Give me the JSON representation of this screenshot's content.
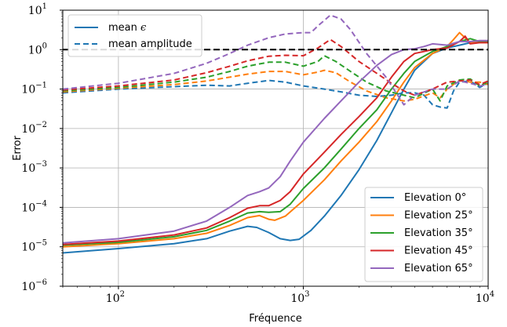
{
  "chart_data": {
    "type": "line",
    "title": "",
    "xlabel": "Fréquence",
    "ylabel": "Error",
    "x_scale": "log",
    "y_scale": "log",
    "xlim": [
      50,
      10000
    ],
    "ylim": [
      1e-06,
      10
    ],
    "grid": true,
    "x_ticks": [
      {
        "value": 100,
        "base": "10",
        "exp": "2"
      },
      {
        "value": 1000,
        "base": "10",
        "exp": "3"
      },
      {
        "value": 10000,
        "base": "10",
        "exp": "4"
      }
    ],
    "y_ticks": [
      {
        "value": 1e-06,
        "base": "10",
        "exp": "−6"
      },
      {
        "value": 1e-05,
        "base": "10",
        "exp": "−5"
      },
      {
        "value": 0.0001,
        "base": "10",
        "exp": "−4"
      },
      {
        "value": 0.001,
        "base": "10",
        "exp": "−3"
      },
      {
        "value": 0.01,
        "base": "10",
        "exp": "−2"
      },
      {
        "value": 0.1,
        "base": "10",
        "exp": "−1"
      },
      {
        "value": 1,
        "base": "10",
        "exp": "0"
      },
      {
        "value": 10,
        "base": "10",
        "exp": "1"
      }
    ],
    "reference_line": {
      "y": 1.0,
      "color": "#000000",
      "style": "dashed"
    },
    "style_legend": {
      "placement": "top-left",
      "entries": [
        {
          "label": "mean ",
          "symbol": "ϵ",
          "style": "solid",
          "color": "#1f77b4"
        },
        {
          "label": "mean amplitude",
          "symbol": "",
          "style": "dashed",
          "color": "#1f77b4"
        }
      ]
    },
    "series_legend": {
      "placement": "bottom-right",
      "degree_symbol": "°"
    },
    "series": [
      {
        "name": "Elevation 0",
        "color": "#1f77b4",
        "mean_error": [
          [
            50,
            7e-06
          ],
          [
            100,
            9e-06
          ],
          [
            200,
            1.2e-05
          ],
          [
            300,
            1.6e-05
          ],
          [
            400,
            2.5e-05
          ],
          [
            500,
            3.3e-05
          ],
          [
            560,
            3.1e-05
          ],
          [
            650,
            2.3e-05
          ],
          [
            750,
            1.6e-05
          ],
          [
            850,
            1.45e-05
          ],
          [
            950,
            1.55e-05
          ],
          [
            1100,
            2.6e-05
          ],
          [
            1300,
            6e-05
          ],
          [
            1600,
            0.0002
          ],
          [
            2000,
            0.0009
          ],
          [
            2500,
            0.005
          ],
          [
            3000,
            0.025
          ],
          [
            3500,
            0.1
          ],
          [
            4000,
            0.3
          ],
          [
            5000,
            0.8
          ],
          [
            6000,
            1.1
          ],
          [
            7000,
            1.3
          ],
          [
            8000,
            1.5
          ],
          [
            10000,
            1.6
          ]
        ],
        "mean_amplitude": [
          [
            50,
            0.08
          ],
          [
            100,
            0.1
          ],
          [
            200,
            0.115
          ],
          [
            300,
            0.125
          ],
          [
            400,
            0.12
          ],
          [
            500,
            0.14
          ],
          [
            650,
            0.165
          ],
          [
            800,
            0.15
          ],
          [
            1000,
            0.12
          ],
          [
            1300,
            0.1
          ],
          [
            1600,
            0.085
          ],
          [
            2000,
            0.07
          ],
          [
            2500,
            0.065
          ],
          [
            3000,
            0.07
          ],
          [
            3500,
            0.08
          ],
          [
            4000,
            0.08
          ],
          [
            4500,
            0.07
          ],
          [
            5000,
            0.04
          ],
          [
            5500,
            0.035
          ],
          [
            6000,
            0.033
          ],
          [
            6500,
            0.09
          ],
          [
            7000,
            0.15
          ],
          [
            8000,
            0.16
          ],
          [
            9000,
            0.11
          ],
          [
            10000,
            0.14
          ]
        ]
      },
      {
        "name": "Elevation 25",
        "color": "#ff7f0e",
        "mean_error": [
          [
            50,
            1e-05
          ],
          [
            100,
            1.2e-05
          ],
          [
            200,
            1.6e-05
          ],
          [
            300,
            2.2e-05
          ],
          [
            400,
            3.5e-05
          ],
          [
            500,
            5.5e-05
          ],
          [
            580,
            6.2e-05
          ],
          [
            650,
            5e-05
          ],
          [
            700,
            4.7e-05
          ],
          [
            800,
            6e-05
          ],
          [
            1000,
            0.00015
          ],
          [
            1300,
            0.0005
          ],
          [
            1600,
            0.0015
          ],
          [
            2000,
            0.0045
          ],
          [
            2500,
            0.015
          ],
          [
            3000,
            0.05
          ],
          [
            3500,
            0.15
          ],
          [
            4000,
            0.35
          ],
          [
            5000,
            0.8
          ],
          [
            6000,
            1.2
          ],
          [
            6500,
            1.8
          ],
          [
            7000,
            2.7
          ],
          [
            8000,
            1.5
          ],
          [
            10000,
            1.5
          ]
        ],
        "mean_amplitude": [
          [
            50,
            0.085
          ],
          [
            100,
            0.105
          ],
          [
            200,
            0.13
          ],
          [
            300,
            0.16
          ],
          [
            400,
            0.2
          ],
          [
            500,
            0.24
          ],
          [
            650,
            0.28
          ],
          [
            800,
            0.28
          ],
          [
            1000,
            0.23
          ],
          [
            1200,
            0.27
          ],
          [
            1300,
            0.3
          ],
          [
            1500,
            0.26
          ],
          [
            1800,
            0.15
          ],
          [
            2200,
            0.09
          ],
          [
            2800,
            0.06
          ],
          [
            3500,
            0.05
          ],
          [
            4000,
            0.055
          ],
          [
            5000,
            0.08
          ],
          [
            5500,
            0.06
          ],
          [
            6000,
            0.1
          ],
          [
            7000,
            0.17
          ],
          [
            8000,
            0.15
          ],
          [
            9000,
            0.15
          ],
          [
            10000,
            0.13
          ]
        ]
      },
      {
        "name": "Elevation 35",
        "color": "#2ca02c",
        "mean_error": [
          [
            50,
            1.1e-05
          ],
          [
            100,
            1.3e-05
          ],
          [
            200,
            1.8e-05
          ],
          [
            300,
            2.6e-05
          ],
          [
            400,
            4.5e-05
          ],
          [
            500,
            7.2e-05
          ],
          [
            580,
            7.8e-05
          ],
          [
            650,
            7.5e-05
          ],
          [
            750,
            7.8e-05
          ],
          [
            850,
            0.00012
          ],
          [
            1000,
            0.0003
          ],
          [
            1300,
            0.001
          ],
          [
            1600,
            0.003
          ],
          [
            2000,
            0.01
          ],
          [
            2500,
            0.03
          ],
          [
            3000,
            0.1
          ],
          [
            3500,
            0.25
          ],
          [
            4000,
            0.5
          ],
          [
            5000,
            0.9
          ],
          [
            6000,
            1.2
          ],
          [
            7000,
            1.6
          ],
          [
            8000,
            1.9
          ],
          [
            9000,
            1.6
          ],
          [
            10000,
            1.6
          ]
        ],
        "mean_amplitude": [
          [
            50,
            0.09
          ],
          [
            100,
            0.11
          ],
          [
            200,
            0.15
          ],
          [
            300,
            0.2
          ],
          [
            400,
            0.28
          ],
          [
            500,
            0.38
          ],
          [
            650,
            0.48
          ],
          [
            800,
            0.48
          ],
          [
            1000,
            0.38
          ],
          [
            1200,
            0.5
          ],
          [
            1300,
            0.7
          ],
          [
            1500,
            0.5
          ],
          [
            1800,
            0.28
          ],
          [
            2200,
            0.15
          ],
          [
            2800,
            0.09
          ],
          [
            3500,
            0.07
          ],
          [
            4000,
            0.06
          ],
          [
            5000,
            0.1
          ],
          [
            5500,
            0.05
          ],
          [
            6000,
            0.12
          ],
          [
            7000,
            0.17
          ],
          [
            8000,
            0.18
          ],
          [
            9000,
            0.12
          ],
          [
            10000,
            0.15
          ]
        ]
      },
      {
        "name": "Elevation 45",
        "color": "#d62728",
        "mean_error": [
          [
            50,
            1.15e-05
          ],
          [
            100,
            1.4e-05
          ],
          [
            200,
            2e-05
          ],
          [
            300,
            3e-05
          ],
          [
            400,
            5.5e-05
          ],
          [
            500,
            9.5e-05
          ],
          [
            580,
            0.00011
          ],
          [
            650,
            0.00011
          ],
          [
            750,
            0.00015
          ],
          [
            850,
            0.00025
          ],
          [
            1000,
            0.0007
          ],
          [
            1300,
            0.0025
          ],
          [
            1600,
            0.007
          ],
          [
            2000,
            0.02
          ],
          [
            2500,
            0.06
          ],
          [
            3000,
            0.2
          ],
          [
            3500,
            0.5
          ],
          [
            4000,
            0.8
          ],
          [
            5000,
            1.0
          ],
          [
            6000,
            1.1
          ],
          [
            7000,
            1.6
          ],
          [
            7500,
            2.2
          ],
          [
            8000,
            1.4
          ],
          [
            9000,
            1.5
          ],
          [
            10000,
            1.5
          ]
        ],
        "mean_amplitude": [
          [
            50,
            0.095
          ],
          [
            100,
            0.12
          ],
          [
            200,
            0.17
          ],
          [
            300,
            0.26
          ],
          [
            400,
            0.38
          ],
          [
            500,
            0.52
          ],
          [
            650,
            0.68
          ],
          [
            800,
            0.72
          ],
          [
            1000,
            0.7
          ],
          [
            1200,
            1.1
          ],
          [
            1400,
            1.8
          ],
          [
            1600,
            1.2
          ],
          [
            2000,
            0.5
          ],
          [
            2500,
            0.25
          ],
          [
            3000,
            0.14
          ],
          [
            3500,
            0.09
          ],
          [
            4000,
            0.07
          ],
          [
            5000,
            0.1
          ],
          [
            6000,
            0.15
          ],
          [
            7000,
            0.16
          ],
          [
            8000,
            0.17
          ],
          [
            9000,
            0.13
          ],
          [
            10000,
            0.16
          ]
        ]
      },
      {
        "name": "Elevation 65",
        "color": "#9467bd",
        "mean_error": [
          [
            50,
            1.25e-05
          ],
          [
            100,
            1.6e-05
          ],
          [
            200,
            2.5e-05
          ],
          [
            300,
            4.5e-05
          ],
          [
            400,
            0.0001
          ],
          [
            500,
            0.0002
          ],
          [
            580,
            0.00025
          ],
          [
            650,
            0.00031
          ],
          [
            750,
            0.0006
          ],
          [
            850,
            0.0015
          ],
          [
            1000,
            0.0045
          ],
          [
            1300,
            0.018
          ],
          [
            1600,
            0.05
          ],
          [
            2000,
            0.15
          ],
          [
            2500,
            0.4
          ],
          [
            3000,
            0.75
          ],
          [
            3500,
            1.0
          ],
          [
            4000,
            1.05
          ],
          [
            4500,
            1.2
          ],
          [
            5000,
            1.4
          ],
          [
            6000,
            1.3
          ],
          [
            7000,
            1.6
          ],
          [
            8000,
            1.6
          ],
          [
            9000,
            1.7
          ],
          [
            10000,
            1.7
          ]
        ],
        "mean_amplitude": [
          [
            50,
            0.1
          ],
          [
            100,
            0.14
          ],
          [
            200,
            0.25
          ],
          [
            300,
            0.45
          ],
          [
            400,
            0.8
          ],
          [
            500,
            1.3
          ],
          [
            650,
            2.0
          ],
          [
            800,
            2.5
          ],
          [
            1000,
            2.7
          ],
          [
            1100,
            2.7
          ],
          [
            1200,
            4.0
          ],
          [
            1400,
            7.5
          ],
          [
            1600,
            6
          ],
          [
            1800,
            3.2
          ],
          [
            2200,
            0.8
          ],
          [
            2800,
            0.2
          ],
          [
            3500,
            0.04
          ],
          [
            4000,
            0.07
          ],
          [
            5000,
            0.1
          ],
          [
            6000,
            0.1
          ],
          [
            7000,
            0.16
          ],
          [
            8000,
            0.14
          ],
          [
            9000,
            0.12
          ],
          [
            10000,
            0.13
          ]
        ]
      }
    ]
  }
}
